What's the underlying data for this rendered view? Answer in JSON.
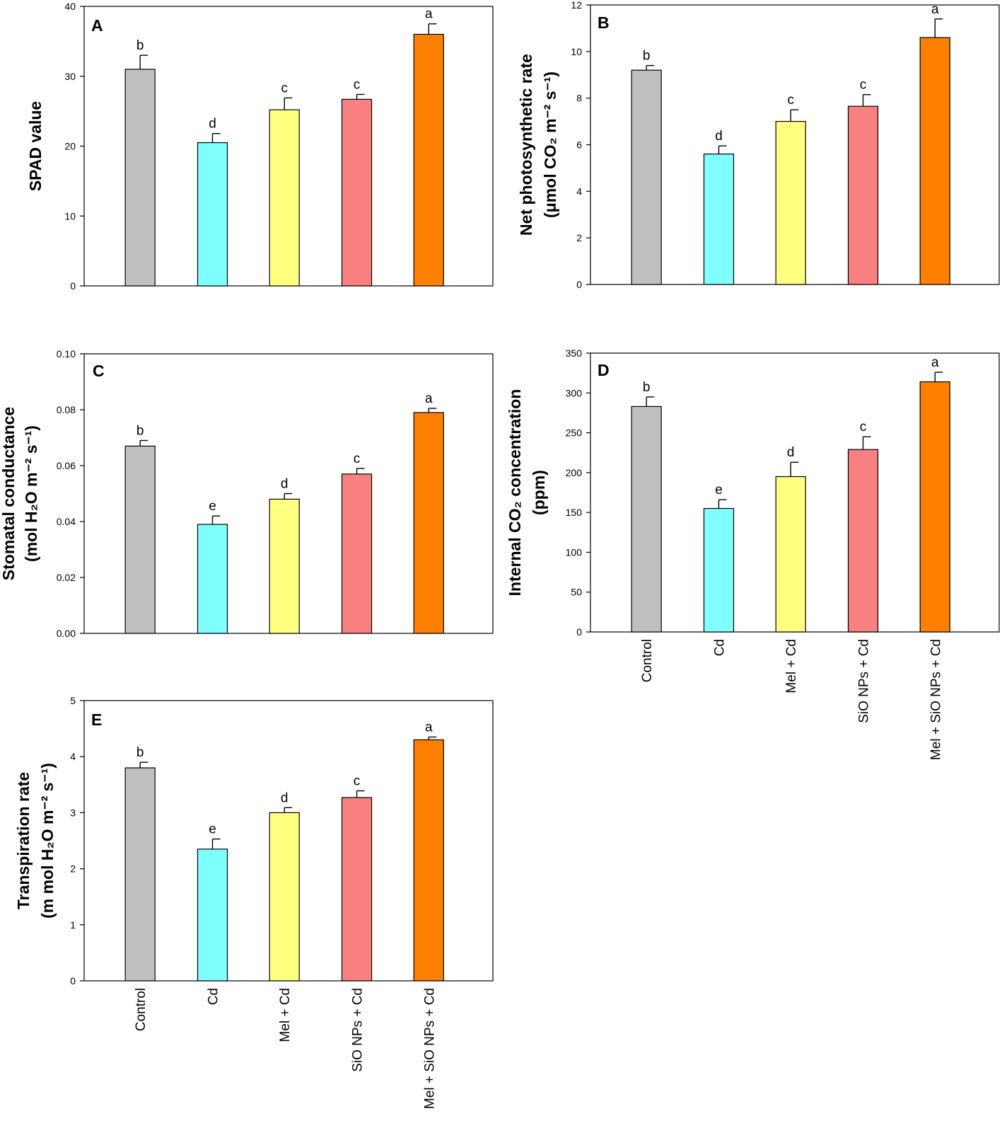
{
  "chart_data": [
    {
      "panel": "A",
      "type": "bar",
      "categories": [
        "Control",
        "Cd",
        "Mel + Cd",
        "SiO NPs + Cd",
        "Mel + SiO NPs + Cd"
      ],
      "values": [
        31.0,
        20.5,
        25.2,
        26.7,
        36.0
      ],
      "errors": [
        2.0,
        1.3,
        1.7,
        0.7,
        1.5
      ],
      "letters": [
        "b",
        "d",
        "c",
        "c",
        "a"
      ],
      "ylabel": [
        "SPAD value"
      ],
      "ylim": [
        0,
        40
      ],
      "ticks": [
        0,
        10,
        20,
        30,
        40
      ],
      "tick_labels": [
        "0",
        "10",
        "20",
        "30",
        "40"
      ]
    },
    {
      "panel": "B",
      "type": "bar",
      "categories": [
        "Control",
        "Cd",
        "Mel + Cd",
        "SiO NPs + Cd",
        "Mel + SiO NPs + Cd"
      ],
      "values": [
        9.2,
        5.6,
        7.0,
        7.65,
        10.6
      ],
      "errors": [
        0.2,
        0.35,
        0.5,
        0.5,
        0.8
      ],
      "letters": [
        "b",
        "d",
        "c",
        "c",
        "a"
      ],
      "ylabel": [
        "Net photosynthetic rate",
        "(μmol CO₂ m⁻² s⁻¹)"
      ],
      "ylim": [
        0,
        12
      ],
      "ticks": [
        0,
        2,
        4,
        6,
        8,
        10,
        12
      ],
      "tick_labels": [
        "0",
        "2",
        "4",
        "6",
        "8",
        "10",
        "12"
      ]
    },
    {
      "panel": "C",
      "type": "bar",
      "categories": [
        "Control",
        "Cd",
        "Mel + Cd",
        "SiO NPs + Cd",
        "Mel + SiO NPs + Cd"
      ],
      "values": [
        0.067,
        0.039,
        0.048,
        0.057,
        0.079
      ],
      "errors": [
        0.002,
        0.003,
        0.002,
        0.002,
        0.0015
      ],
      "letters": [
        "b",
        "e",
        "d",
        "c",
        "a"
      ],
      "ylabel": [
        "Stomatal conductance",
        "(mol H₂O m⁻² s⁻¹)"
      ],
      "ylim": [
        0,
        0.1
      ],
      "ticks": [
        0,
        0.02,
        0.04,
        0.06,
        0.08,
        0.1
      ],
      "tick_labels": [
        "0.00",
        "0.02",
        "0.04",
        "0.06",
        "0.08",
        "0.10"
      ]
    },
    {
      "panel": "D",
      "type": "bar",
      "categories": [
        "Control",
        "Cd",
        "Mel + Cd",
        "SiO NPs + Cd",
        "Mel + SiO NPs + Cd"
      ],
      "values": [
        283,
        155,
        195,
        229,
        314
      ],
      "errors": [
        12,
        11,
        18,
        16,
        12
      ],
      "letters": [
        "b",
        "e",
        "d",
        "c",
        "a"
      ],
      "ylabel": [
        "Internal CO₂ concentration",
        "(ppm)"
      ],
      "ylim": [
        0,
        350
      ],
      "ticks": [
        0,
        50,
        100,
        150,
        200,
        250,
        300,
        350
      ],
      "tick_labels": [
        "0",
        "50",
        "100",
        "150",
        "200",
        "250",
        "300",
        "350"
      ]
    },
    {
      "panel": "E",
      "type": "bar",
      "categories": [
        "Control",
        "Cd",
        "Mel + Cd",
        "SiO NPs + Cd",
        "Mel + SiO NPs + Cd"
      ],
      "values": [
        3.8,
        2.35,
        3.0,
        3.27,
        4.3
      ],
      "errors": [
        0.1,
        0.18,
        0.09,
        0.12,
        0.05
      ],
      "letters": [
        "b",
        "e",
        "d",
        "c",
        "a"
      ],
      "ylabel": [
        "Transpiration rate",
        "(m mol H₂O m⁻² s⁻¹)"
      ],
      "ylim": [
        0,
        5
      ],
      "ticks": [
        0,
        1,
        2,
        3,
        4,
        5
      ],
      "tick_labels": [
        "0",
        "1",
        "2",
        "3",
        "4",
        "5"
      ]
    }
  ],
  "colors": {
    "Control": "#c0c0c0",
    "Cd": "#80ffff",
    "Mel + Cd": "#ffff80",
    "SiO NPs + Cd": "#f88080",
    "Mel + SiO NPs + Cd": "#ff8000",
    "axis": "#000000"
  }
}
